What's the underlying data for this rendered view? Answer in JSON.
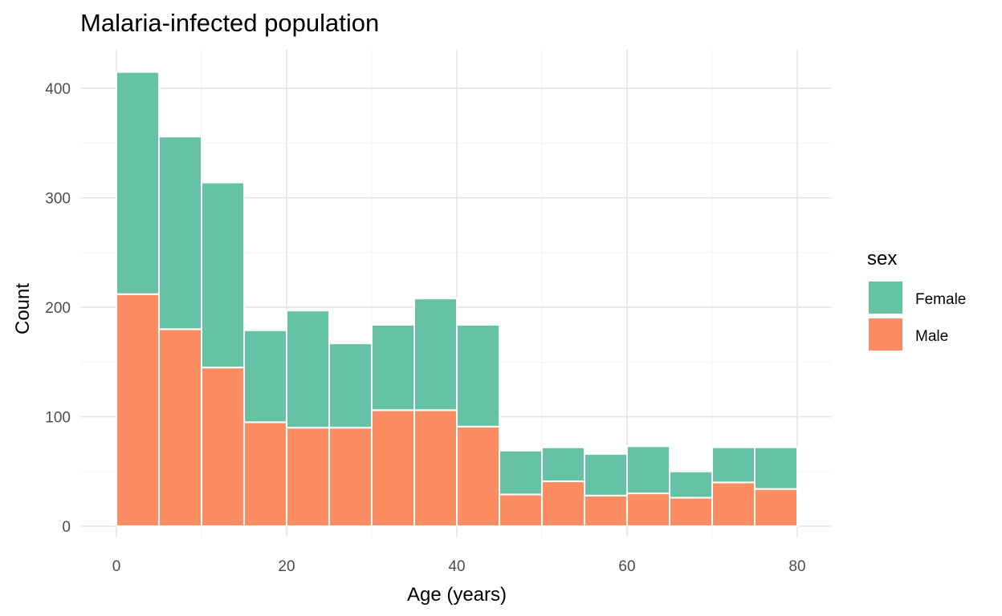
{
  "chart_data": {
    "type": "bar",
    "stacked": true,
    "title": "Malaria-infected population",
    "xlabel": "Age (years)",
    "ylabel": "Count",
    "bin_width": 5,
    "bins": [
      [
        0,
        5
      ],
      [
        5,
        10
      ],
      [
        10,
        15
      ],
      [
        15,
        20
      ],
      [
        20,
        25
      ],
      [
        25,
        30
      ],
      [
        30,
        35
      ],
      [
        35,
        40
      ],
      [
        40,
        45
      ],
      [
        45,
        50
      ],
      [
        50,
        55
      ],
      [
        55,
        60
      ],
      [
        60,
        65
      ],
      [
        65,
        70
      ],
      [
        70,
        75
      ],
      [
        75,
        80
      ]
    ],
    "series": [
      {
        "name": "Male",
        "color": "#fc8d62",
        "values": [
          212,
          180,
          145,
          95,
          90,
          90,
          106,
          106,
          91,
          29,
          41,
          28,
          30,
          26,
          40,
          34
        ]
      },
      {
        "name": "Female",
        "color": "#66c2a5",
        "values": [
          203,
          176,
          169,
          84,
          107,
          77,
          78,
          102,
          93,
          40,
          31,
          38,
          43,
          24,
          32,
          38
        ]
      }
    ],
    "totals": [
      415,
      356,
      314,
      179,
      197,
      167,
      184,
      208,
      184,
      69,
      72,
      66,
      73,
      50,
      72,
      72
    ],
    "xlim": [
      -5,
      83
    ],
    "ylim": [
      0,
      435
    ],
    "xticks": [
      0,
      20,
      40,
      60,
      80
    ],
    "yticks": [
      0,
      100,
      200,
      300,
      400
    ],
    "grid": true,
    "legend": {
      "title": "sex",
      "placement": "right",
      "entries": [
        {
          "label": "Female",
          "color": "#66c2a5"
        },
        {
          "label": "Male",
          "color": "#fc8d62"
        }
      ]
    }
  }
}
